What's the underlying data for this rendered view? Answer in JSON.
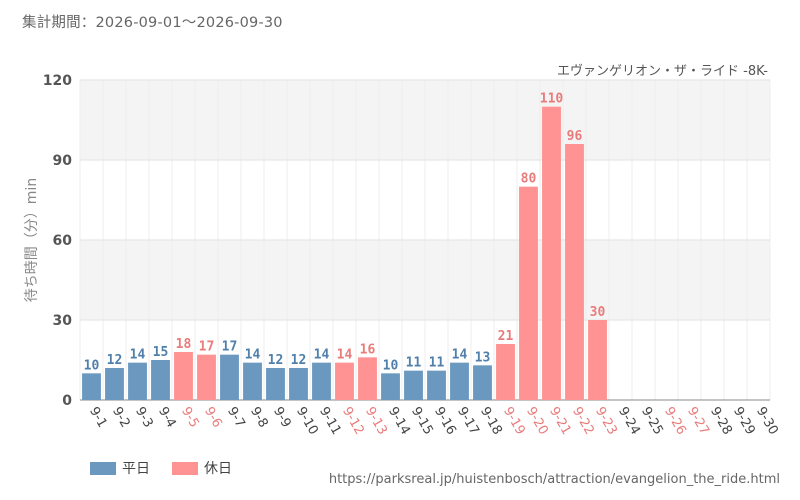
{
  "header": {
    "period_label": "集計期間：2026-09-01〜2026-09-30"
  },
  "source_url": "https://parksreal.jp/huistenbosch/attraction/evangelion_the_ride.html",
  "colors": {
    "weekday": "#6b98bf",
    "holiday": "#ff9393",
    "weekday_text": "#4f7faa",
    "holiday_text": "#e97b7b"
  },
  "legend": [
    {
      "key": "weekday",
      "label": "平日"
    },
    {
      "key": "holiday",
      "label": "休日"
    }
  ],
  "chart_data": {
    "type": "bar",
    "title": "エヴァンゲリオン・ザ・ライド -8K-",
    "xlabel": "",
    "ylabel": "待ち時間（分）min",
    "ylim": [
      0,
      120
    ],
    "yticks": [
      0,
      30,
      60,
      90,
      120
    ],
    "grid": true,
    "legend_position": "bottom-left",
    "categories": [
      "9-1",
      "9-2",
      "9-3",
      "9-4",
      "9-5",
      "9-6",
      "9-7",
      "9-8",
      "9-9",
      "9-10",
      "9-11",
      "9-12",
      "9-13",
      "9-14",
      "9-15",
      "9-16",
      "9-17",
      "9-18",
      "9-19",
      "9-20",
      "9-21",
      "9-22",
      "9-23",
      "9-24",
      "9-25",
      "9-26",
      "9-27",
      "9-28",
      "9-29",
      "9-30"
    ],
    "values": [
      10,
      12,
      14,
      15,
      18,
      17,
      17,
      14,
      12,
      12,
      14,
      14,
      16,
      10,
      11,
      11,
      14,
      13,
      21,
      80,
      110,
      96,
      30,
      null,
      null,
      null,
      null,
      null,
      null,
      null
    ],
    "day_types": [
      "weekday",
      "weekday",
      "weekday",
      "weekday",
      "holiday",
      "holiday",
      "weekday",
      "weekday",
      "weekday",
      "weekday",
      "weekday",
      "holiday",
      "holiday",
      "weekday",
      "weekday",
      "weekday",
      "weekday",
      "weekday",
      "holiday",
      "holiday",
      "holiday",
      "holiday",
      "holiday",
      "weekday",
      "weekday",
      "holiday",
      "holiday",
      "weekday",
      "weekday",
      "weekday"
    ]
  }
}
